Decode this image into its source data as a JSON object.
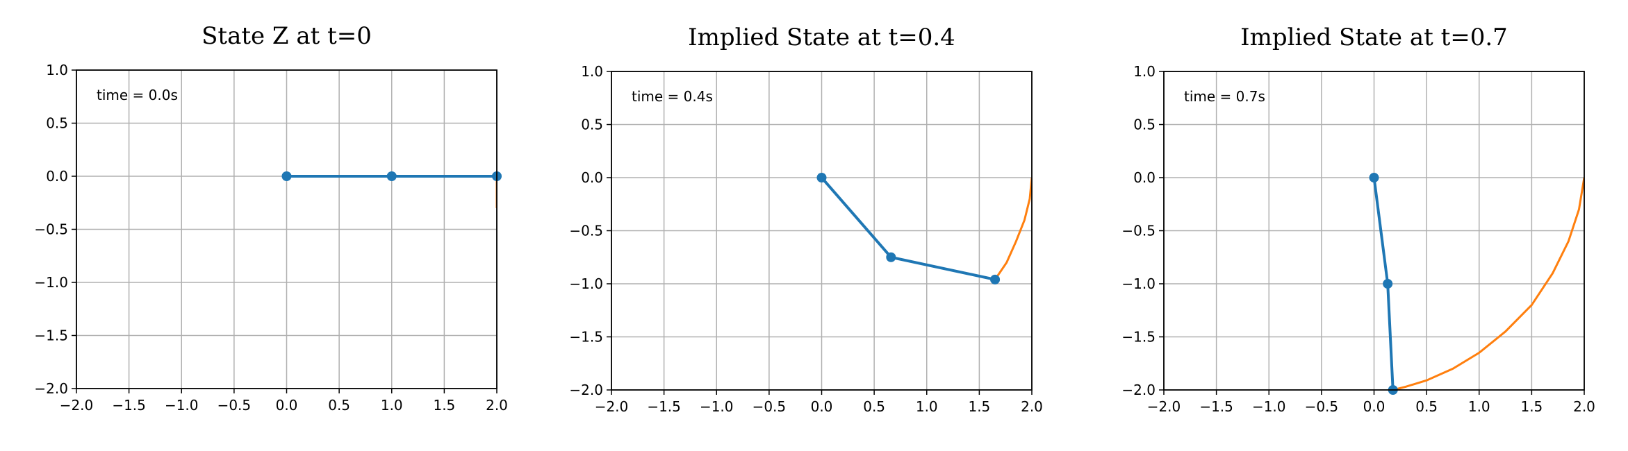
{
  "chart_data": [
    {
      "type": "line",
      "title": "State Z at t=0",
      "annotation": "time = 0.0s",
      "xlim": [
        -2.0,
        2.0
      ],
      "ylim": [
        -2.0,
        1.0
      ],
      "xticks": [
        "−2.0",
        "−1.5",
        "−1.0",
        "−0.5",
        "0.0",
        "0.5",
        "1.0",
        "1.5",
        "2.0"
      ],
      "yticks": [
        "1.0",
        "0.5",
        "0.0",
        "−0.5",
        "−1.0",
        "−1.5",
        "−2.0"
      ],
      "grid": true,
      "colors": {
        "arm": "#1f77b4",
        "trace": "#ff7f0e"
      },
      "arm": {
        "x": [
          0.0,
          1.0,
          2.0
        ],
        "y": [
          0.0,
          0.0,
          0.0
        ]
      },
      "trace": {
        "x": [
          2.0,
          2.0,
          2.0
        ],
        "y": [
          0.0,
          -0.15,
          -0.3
        ]
      }
    },
    {
      "type": "line",
      "title": "Implied State at t=0.4",
      "annotation": "time = 0.4s",
      "xlim": [
        -2.0,
        2.0
      ],
      "ylim": [
        -2.0,
        1.0
      ],
      "xticks": [
        "−2.0",
        "−1.5",
        "−1.0",
        "−0.5",
        "0.0",
        "0.5",
        "1.0",
        "1.5",
        "2.0"
      ],
      "yticks": [
        "1.0",
        "0.5",
        "0.0",
        "−0.5",
        "−1.0",
        "−1.5",
        "−2.0"
      ],
      "grid": true,
      "colors": {
        "arm": "#1f77b4",
        "trace": "#ff7f0e"
      },
      "arm": {
        "x": [
          0.0,
          0.66,
          1.65
        ],
        "y": [
          0.0,
          -0.75,
          -0.96
        ]
      },
      "trace": {
        "x": [
          2.0,
          1.98,
          1.93,
          1.85,
          1.76,
          1.65
        ],
        "y": [
          0.0,
          -0.2,
          -0.4,
          -0.6,
          -0.8,
          -0.96
        ]
      }
    },
    {
      "type": "line",
      "title": "Implied State at t=0.7",
      "annotation": "time = 0.7s",
      "xlim": [
        -2.0,
        2.0
      ],
      "ylim": [
        -2.0,
        1.0
      ],
      "xticks": [
        "−2.0",
        "−1.5",
        "−1.0",
        "−0.5",
        "0.0",
        "0.5",
        "1.0",
        "1.5",
        "2.0"
      ],
      "yticks": [
        "1.0",
        "0.5",
        "0.0",
        "−0.5",
        "−1.0",
        "−1.5",
        "−2.0"
      ],
      "grid": true,
      "colors": {
        "arm": "#1f77b4",
        "trace": "#ff7f0e"
      },
      "arm": {
        "x": [
          0.0,
          0.13,
          0.18
        ],
        "y": [
          0.0,
          -1.0,
          -2.0
        ]
      },
      "trace": {
        "x": [
          2.0,
          1.95,
          1.85,
          1.7,
          1.5,
          1.25,
          1.0,
          0.75,
          0.5,
          0.3,
          0.18
        ],
        "y": [
          0.0,
          -0.3,
          -0.6,
          -0.9,
          -1.2,
          -1.45,
          -1.65,
          -1.8,
          -1.91,
          -1.97,
          -2.0
        ]
      }
    }
  ]
}
